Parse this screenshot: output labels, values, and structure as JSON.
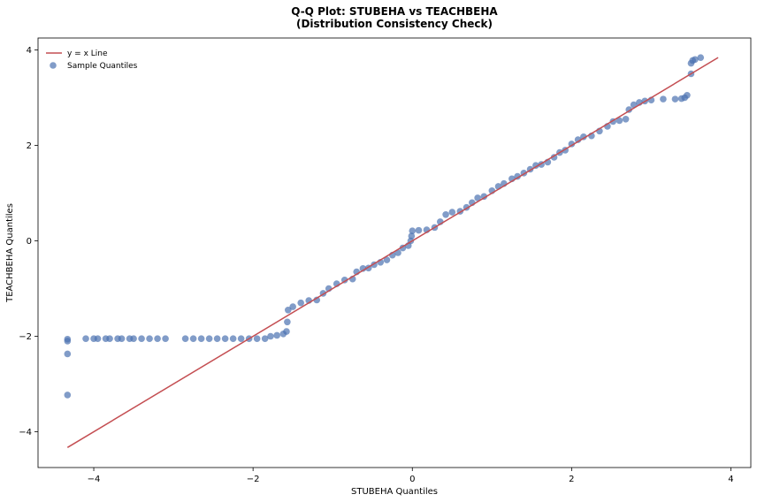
{
  "chart_data": {
    "type": "scatter",
    "title": "Q-Q Plot: STUBEHA vs TEACHBEHA",
    "subtitle": "(Distribution Consistency Check)",
    "xlabel": "STUBEHA Quantiles",
    "ylabel": "TEACHBEHA Quantiles",
    "xlim": [
      -4.7,
      4.25
    ],
    "ylim": [
      -4.75,
      4.25
    ],
    "x_ticks": [
      -4,
      -2,
      0,
      2,
      4
    ],
    "y_ticks": [
      -4,
      -2,
      0,
      2,
      4
    ],
    "x_tick_labels": [
      "−4",
      "−2",
      "0",
      "2",
      "4"
    ],
    "y_tick_labels": [
      "−4",
      "−2",
      "0",
      "2",
      "4"
    ],
    "grid": false,
    "legend_position": "top-left",
    "series": [
      {
        "name": "y = x Line",
        "kind": "line",
        "color": "#c44e52",
        "x": [
          -4.33,
          3.84
        ],
        "y": [
          -4.33,
          3.84
        ]
      },
      {
        "name": "Sample Quantiles",
        "kind": "scatter",
        "color": "#4c72b0",
        "points": [
          [
            -4.33,
            -3.23
          ],
          [
            -4.33,
            -2.37
          ],
          [
            -4.33,
            -2.1
          ],
          [
            -4.33,
            -2.06
          ],
          [
            -4.1,
            -2.05
          ],
          [
            -4.0,
            -2.05
          ],
          [
            -3.95,
            -2.05
          ],
          [
            -3.85,
            -2.05
          ],
          [
            -3.8,
            -2.05
          ],
          [
            -3.7,
            -2.05
          ],
          [
            -3.65,
            -2.05
          ],
          [
            -3.55,
            -2.05
          ],
          [
            -3.5,
            -2.05
          ],
          [
            -3.4,
            -2.05
          ],
          [
            -3.3,
            -2.05
          ],
          [
            -3.2,
            -2.05
          ],
          [
            -3.1,
            -2.05
          ],
          [
            -2.85,
            -2.05
          ],
          [
            -2.75,
            -2.05
          ],
          [
            -2.65,
            -2.05
          ],
          [
            -2.55,
            -2.05
          ],
          [
            -2.45,
            -2.05
          ],
          [
            -2.35,
            -2.05
          ],
          [
            -2.25,
            -2.05
          ],
          [
            -2.15,
            -2.05
          ],
          [
            -2.05,
            -2.05
          ],
          [
            -1.95,
            -2.05
          ],
          [
            -1.85,
            -2.05
          ],
          [
            -1.78,
            -2.0
          ],
          [
            -1.7,
            -1.98
          ],
          [
            -1.62,
            -1.95
          ],
          [
            -1.58,
            -1.9
          ],
          [
            -1.57,
            -1.7
          ],
          [
            -1.56,
            -1.45
          ],
          [
            -1.5,
            -1.38
          ],
          [
            -1.4,
            -1.3
          ],
          [
            -1.3,
            -1.25
          ],
          [
            -1.2,
            -1.24
          ],
          [
            -1.12,
            -1.1
          ],
          [
            -1.05,
            -1.0
          ],
          [
            -0.95,
            -0.9
          ],
          [
            -0.85,
            -0.82
          ],
          [
            -0.75,
            -0.8
          ],
          [
            -0.7,
            -0.65
          ],
          [
            -0.62,
            -0.58
          ],
          [
            -0.55,
            -0.57
          ],
          [
            -0.48,
            -0.5
          ],
          [
            -0.4,
            -0.45
          ],
          [
            -0.32,
            -0.4
          ],
          [
            -0.25,
            -0.3
          ],
          [
            -0.18,
            -0.25
          ],
          [
            -0.12,
            -0.15
          ],
          [
            -0.05,
            -0.1
          ],
          [
            -0.02,
            0.0
          ],
          [
            -0.01,
            0.1
          ],
          [
            0.0,
            0.21
          ],
          [
            0.08,
            0.22
          ],
          [
            0.18,
            0.23
          ],
          [
            0.28,
            0.28
          ],
          [
            0.35,
            0.4
          ],
          [
            0.42,
            0.55
          ],
          [
            0.5,
            0.6
          ],
          [
            0.6,
            0.62
          ],
          [
            0.68,
            0.7
          ],
          [
            0.75,
            0.8
          ],
          [
            0.82,
            0.9
          ],
          [
            0.9,
            0.93
          ],
          [
            1.0,
            1.05
          ],
          [
            1.08,
            1.14
          ],
          [
            1.15,
            1.2
          ],
          [
            1.25,
            1.3
          ],
          [
            1.32,
            1.35
          ],
          [
            1.4,
            1.42
          ],
          [
            1.48,
            1.5
          ],
          [
            1.55,
            1.58
          ],
          [
            1.62,
            1.6
          ],
          [
            1.7,
            1.65
          ],
          [
            1.78,
            1.75
          ],
          [
            1.85,
            1.85
          ],
          [
            1.92,
            1.9
          ],
          [
            2.0,
            2.03
          ],
          [
            2.08,
            2.12
          ],
          [
            2.15,
            2.18
          ],
          [
            2.25,
            2.2
          ],
          [
            2.35,
            2.3
          ],
          [
            2.45,
            2.4
          ],
          [
            2.52,
            2.5
          ],
          [
            2.6,
            2.52
          ],
          [
            2.68,
            2.55
          ],
          [
            2.72,
            2.75
          ],
          [
            2.78,
            2.85
          ],
          [
            2.85,
            2.9
          ],
          [
            2.92,
            2.93
          ],
          [
            3.0,
            2.95
          ],
          [
            3.15,
            2.97
          ],
          [
            3.3,
            2.97
          ],
          [
            3.38,
            2.98
          ],
          [
            3.42,
            3.0
          ],
          [
            3.45,
            3.05
          ],
          [
            3.5,
            3.5
          ],
          [
            3.5,
            3.72
          ],
          [
            3.52,
            3.78
          ],
          [
            3.55,
            3.8
          ],
          [
            3.62,
            3.84
          ]
        ]
      }
    ]
  }
}
